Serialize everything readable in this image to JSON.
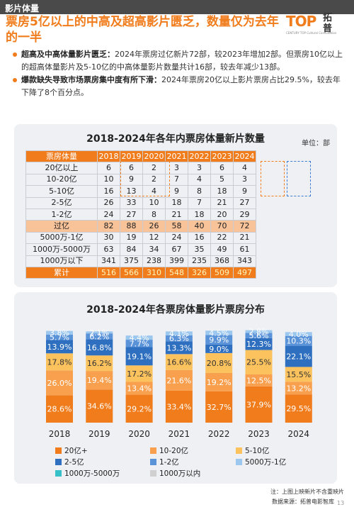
{
  "header": {
    "section_tag": "影片体量",
    "headline": "票房5亿以上的中高及超高影片匮乏，数量仅为去年的一半"
  },
  "logo": {
    "mark": "TOP",
    "cn": "拓普",
    "sub": "CENTURY TOP Cultural Consultation"
  },
  "bullets": [
    {
      "bold": "超高及中高体量影片匮乏：",
      "text": "2024年票房过亿新片72部，较2023年增加2部。但票房10亿以上的超高体量影片及5-10亿的中高体量影片数量共计16部，较去年减少13部。"
    },
    {
      "bold": "爆款缺失导致市场票房集中度有所下滑：",
      "text": "2024年票房20亿以上影片票房占比29.5%，较去年下降了8个百分点。"
    }
  ],
  "table": {
    "title": "2018-2024年各年内票房体量新片数量",
    "unit": "单位：部",
    "header_label": "票房体量",
    "years": [
      "2018",
      "2019",
      "2020",
      "2021",
      "2022",
      "2023",
      "2024"
    ],
    "rows": [
      {
        "label": "20亿以上",
        "values": [
          "6",
          "6",
          "2",
          "3",
          "3",
          "6",
          "4"
        ]
      },
      {
        "label": "10-20亿",
        "values": [
          "10",
          "9",
          "2",
          "7",
          "4",
          "5",
          "3"
        ]
      },
      {
        "label": "5-10亿",
        "values": [
          "16",
          "13",
          "4",
          "9",
          "8",
          "18",
          "9"
        ]
      },
      {
        "label": "2-5亿",
        "values": [
          "26",
          "33",
          "10",
          "18",
          "7",
          "21",
          "27"
        ]
      },
      {
        "label": "1-2亿",
        "values": [
          "24",
          "27",
          "8",
          "21",
          "18",
          "20",
          "29"
        ]
      },
      {
        "label": "过亿",
        "values": [
          "82",
          "88",
          "26",
          "58",
          "40",
          "70",
          "72"
        ],
        "style": "total"
      },
      {
        "label": "5000万-1亿",
        "values": [
          "30",
          "19",
          "12",
          "24",
          "16",
          "22",
          "21"
        ]
      },
      {
        "label": "1000万-5000万",
        "values": [
          "63",
          "84",
          "34",
          "67",
          "35",
          "49",
          "61"
        ]
      },
      {
        "label": "1000万以下",
        "values": [
          "341",
          "375",
          "238",
          "399",
          "235",
          "368",
          "343"
        ]
      },
      {
        "label": "累计",
        "values": [
          "516",
          "566",
          "310",
          "548",
          "326",
          "509",
          "497"
        ],
        "style": "cum"
      }
    ]
  },
  "chart_data": {
    "type": "bar",
    "stacked": true,
    "title": "2018-2024年各票房体量影片票房分布",
    "categories": [
      "2018",
      "2019",
      "2020",
      "2021",
      "2022",
      "2023",
      "2024"
    ],
    "ylim": [
      0,
      100
    ],
    "series": [
      {
        "name": "20亿+",
        "color": "#f07c1c",
        "values": [
          28.6,
          34.6,
          29.2,
          33.4,
          32.7,
          37.9,
          29.5
        ]
      },
      {
        "name": "10-20亿",
        "color": "#f9a04e",
        "values": [
          26.0,
          19.4,
          13.4,
          21.6,
          19.2,
          12.5,
          13.2
        ]
      },
      {
        "name": "5-10亿",
        "color": "#fbc25e",
        "values": [
          17.8,
          16.2,
          17.2,
          16.6,
          20.8,
          25.5,
          15.5
        ]
      },
      {
        "name": "2-5亿",
        "color": "#2e6fc0",
        "values": [
          13.9,
          16.8,
          19.1,
          13.3,
          9.0,
          12.3,
          22.1
        ]
      },
      {
        "name": "1-2亿",
        "color": "#5b93d9",
        "values": [
          5.7,
          6.2,
          7.7,
          6.3,
          9.9,
          5.6,
          10.3
        ]
      },
      {
        "name": "5000万-1亿",
        "color": "#9cc7ef",
        "values": [
          3.8,
          2.1,
          4.4,
          4.1,
          4.5,
          2.8,
          4.0
        ]
      },
      {
        "name": "1000万-5000万",
        "color": "#36c0c8",
        "values": [
          null,
          null,
          null,
          null,
          null,
          null,
          null
        ]
      },
      {
        "name": "1000万以内",
        "color": "#d0d0d0",
        "values": [
          null,
          null,
          null,
          null,
          null,
          null,
          null
        ]
      }
    ]
  },
  "footnotes": {
    "note": "注：上图上映新片不含重映片",
    "source": "数据来源：拓普电影智库",
    "page": "13"
  }
}
